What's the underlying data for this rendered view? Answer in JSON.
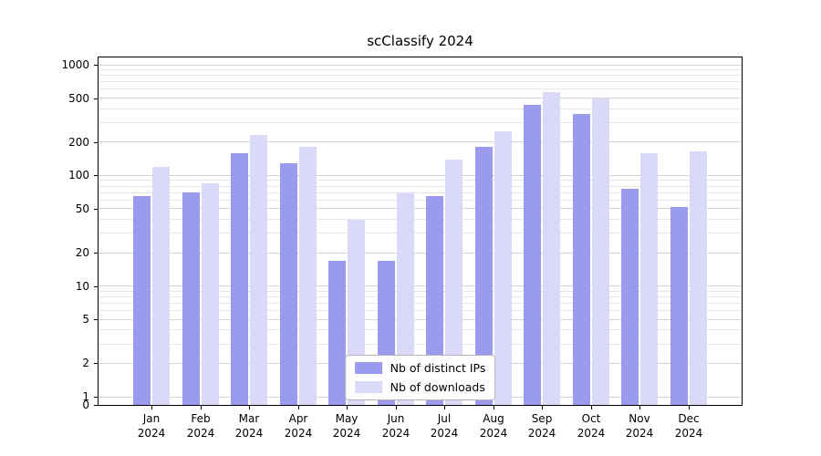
{
  "title": "scClassify 2024",
  "chart_data": {
    "type": "bar",
    "title": "scClassify 2024",
    "yscale": "log",
    "grid": true,
    "legend_position": "lower center",
    "ylim": [
      0,
      1000
    ],
    "yticks": [
      0,
      1,
      2,
      5,
      10,
      20,
      50,
      100,
      200,
      500,
      1000
    ],
    "categories": [
      {
        "label": "Jan",
        "sub": "2024"
      },
      {
        "label": "Feb",
        "sub": "2024"
      },
      {
        "label": "Mar",
        "sub": "2024"
      },
      {
        "label": "Apr",
        "sub": "2024"
      },
      {
        "label": "May",
        "sub": "2024"
      },
      {
        "label": "Jun",
        "sub": "2024"
      },
      {
        "label": "Jul",
        "sub": "2024"
      },
      {
        "label": "Aug",
        "sub": "2024"
      },
      {
        "label": "Sep",
        "sub": "2024"
      },
      {
        "label": "Oct",
        "sub": "2024"
      },
      {
        "label": "Nov",
        "sub": "2024"
      },
      {
        "label": "Dec",
        "sub": "2024"
      }
    ],
    "series": [
      {
        "name": "Nb of distinct IPs",
        "color": "#9b9bee",
        "values": [
          65,
          70,
          160,
          130,
          17,
          17,
          65,
          180,
          430,
          360,
          75,
          52
        ]
      },
      {
        "name": "Nb of downloads",
        "color": "#dadaf8",
        "values": [
          120,
          85,
          230,
          180,
          40,
          70,
          140,
          250,
          570,
          500,
          160,
          165
        ]
      }
    ]
  }
}
